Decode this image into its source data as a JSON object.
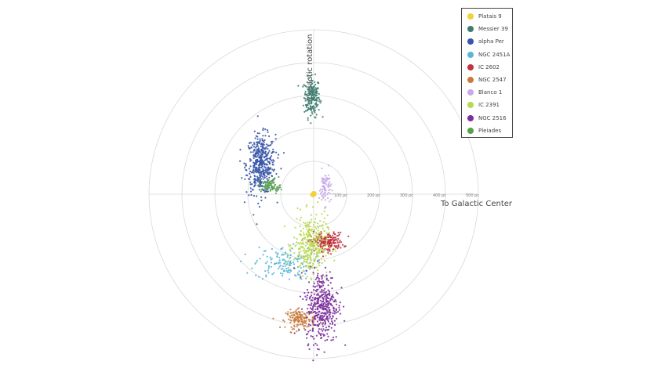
{
  "chart_data": {
    "type": "scatter",
    "projection": "polar",
    "title": "",
    "axis_labels": {
      "vertical": "Galactic rotation",
      "horizontal": "To Galactic Center"
    },
    "radial_ticks": [
      "100 pc",
      "200 pc",
      "300 pc",
      "400 pc",
      "500 pc"
    ],
    "radial_range": [
      0,
      500
    ],
    "grid": true,
    "legend_position": "top-right",
    "units": "pc",
    "series": [
      {
        "name": "Platais 9",
        "color": "#f0d23a",
        "x": 0,
        "y": 0,
        "spread": [
          3,
          3
        ],
        "count": 15
      },
      {
        "name": "Messier 39",
        "color": "#3f7d70",
        "x": -5,
        "y": 295,
        "spread": [
          12,
          30
        ],
        "count": 200
      },
      {
        "name": "alpha Per",
        "color": "#3757a8",
        "x": -160,
        "y": 90,
        "spread": [
          22,
          45
        ],
        "count": 450
      },
      {
        "name": "NGC 2451A",
        "color": "#5bb5d8",
        "x": -90,
        "y": -210,
        "spread": [
          45,
          25
        ],
        "count": 150
      },
      {
        "name": "IC 2602",
        "color": "#c2323f",
        "x": 40,
        "y": -145,
        "spread": [
          25,
          14
        ],
        "count": 200
      },
      {
        "name": "NGC 2547",
        "color": "#c97a3c",
        "x": -40,
        "y": -380,
        "spread": [
          22,
          14
        ],
        "count": 150
      },
      {
        "name": "Blanco 1",
        "color": "#c9a9e8",
        "x": 35,
        "y": 20,
        "spread": [
          9,
          26
        ],
        "count": 80
      },
      {
        "name": "IC 2391",
        "color": "#b7d84f",
        "x": -10,
        "y": -155,
        "spread": [
          26,
          45
        ],
        "count": 320
      },
      {
        "name": "NGC 2516",
        "color": "#7a2f9b",
        "x": 25,
        "y": -340,
        "spread": [
          25,
          55
        ],
        "count": 420
      },
      {
        "name": "Pleiades",
        "color": "#55a24b",
        "x": -130,
        "y": 25,
        "spread": [
          15,
          10
        ],
        "count": 80
      }
    ]
  }
}
